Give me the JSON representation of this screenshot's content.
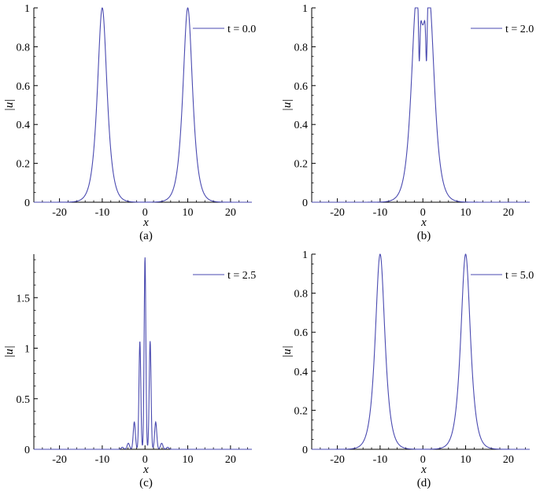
{
  "chart_data": [
    {
      "type": "line",
      "panel_label": "(a)",
      "xlabel": "x",
      "ylabel": "|u|",
      "xlim": [
        -26,
        25
      ],
      "ylim": [
        0,
        1
      ],
      "xticks": [
        -20,
        -10,
        0,
        10,
        20
      ],
      "yticks": [
        0,
        0.2,
        0.4,
        0.6,
        0.8,
        1
      ],
      "ytick_labels": [
        "0",
        "0.2",
        "0.4",
        "0.6",
        "0.8",
        "1"
      ],
      "legend": "t = 0.0",
      "legend_position": "top-right",
      "line_color": "#4a4ab0",
      "series": [
        {
          "name": "t = 0.0",
          "components": [
            {
              "shape": "sech",
              "center": -10,
              "height": 1.0,
              "width": 1.0
            },
            {
              "shape": "sech",
              "center": 10,
              "height": 1.0,
              "width": 1.0
            }
          ]
        }
      ]
    },
    {
      "type": "line",
      "panel_label": "(b)",
      "xlabel": "x",
      "ylabel": "|u|",
      "xlim": [
        -26,
        25
      ],
      "ylim": [
        0,
        1
      ],
      "xticks": [
        -20,
        -10,
        0,
        10,
        20
      ],
      "yticks": [
        0,
        0.2,
        0.4,
        0.6,
        0.8,
        1
      ],
      "ytick_labels": [
        "0",
        "0.2",
        "0.4",
        "0.6",
        "0.8",
        "1"
      ],
      "legend": "t = 2.0",
      "legend_position": "top-right",
      "line_color": "#4a4ab0",
      "series": [
        {
          "name": "t = 2.0",
          "components": [
            {
              "shape": "sech",
              "center": -1.5,
              "height": 0.95,
              "width": 1.1
            },
            {
              "shape": "sech",
              "center": 1.5,
              "height": 0.95,
              "width": 1.1
            },
            {
              "shape": "gauss",
              "center": -0.85,
              "height": -0.3,
              "width": 0.24
            },
            {
              "shape": "gauss",
              "center": 0.85,
              "height": -0.3,
              "width": 0.24
            }
          ]
        }
      ]
    },
    {
      "type": "line",
      "panel_label": "(c)",
      "xlabel": "x",
      "ylabel": "|u|",
      "xlim": [
        -26,
        25
      ],
      "ylim": [
        0,
        1.93
      ],
      "xticks": [
        -20,
        -10,
        0,
        10,
        20
      ],
      "yticks": [
        0,
        0.5,
        1,
        1.5
      ],
      "ytick_labels": [
        "0",
        "0.5",
        "1",
        "1.5"
      ],
      "legend": "t = 2.5",
      "legend_position": "top-right",
      "line_color": "#4a4ab0",
      "series": [
        {
          "name": "t = 2.5",
          "components": [
            {
              "shape": "gauss",
              "center": 0,
              "height": 1.9,
              "width": 0.28
            },
            {
              "shape": "gauss",
              "center": -1.2,
              "height": 1.07,
              "width": 0.3
            },
            {
              "shape": "gauss",
              "center": 1.2,
              "height": 1.07,
              "width": 0.3
            },
            {
              "shape": "gauss",
              "center": -2.5,
              "height": 0.27,
              "width": 0.35
            },
            {
              "shape": "gauss",
              "center": 2.5,
              "height": 0.27,
              "width": 0.35
            },
            {
              "shape": "gauss",
              "center": -3.9,
              "height": 0.06,
              "width": 0.4
            },
            {
              "shape": "gauss",
              "center": 3.9,
              "height": 0.06,
              "width": 0.4
            },
            {
              "shape": "gauss",
              "center": -5.3,
              "height": 0.02,
              "width": 0.4
            },
            {
              "shape": "gauss",
              "center": 5.3,
              "height": 0.02,
              "width": 0.4
            }
          ]
        }
      ]
    },
    {
      "type": "line",
      "panel_label": "(d)",
      "xlabel": "x",
      "ylabel": "|u|",
      "xlim": [
        -26,
        25
      ],
      "ylim": [
        0,
        1
      ],
      "xticks": [
        -20,
        -10,
        0,
        10,
        20
      ],
      "yticks": [
        0,
        0.2,
        0.4,
        0.6,
        0.8,
        1
      ],
      "ytick_labels": [
        "0",
        "0.2",
        "0.4",
        "0.6",
        "0.8",
        "1"
      ],
      "legend": "t = 5.0",
      "legend_position": "top-right",
      "line_color": "#4a4ab0",
      "series": [
        {
          "name": "t = 5.0",
          "components": [
            {
              "shape": "sech",
              "center": -10,
              "height": 1.0,
              "width": 1.0
            },
            {
              "shape": "sech",
              "center": 10,
              "height": 1.0,
              "width": 1.0
            }
          ]
        }
      ]
    }
  ]
}
